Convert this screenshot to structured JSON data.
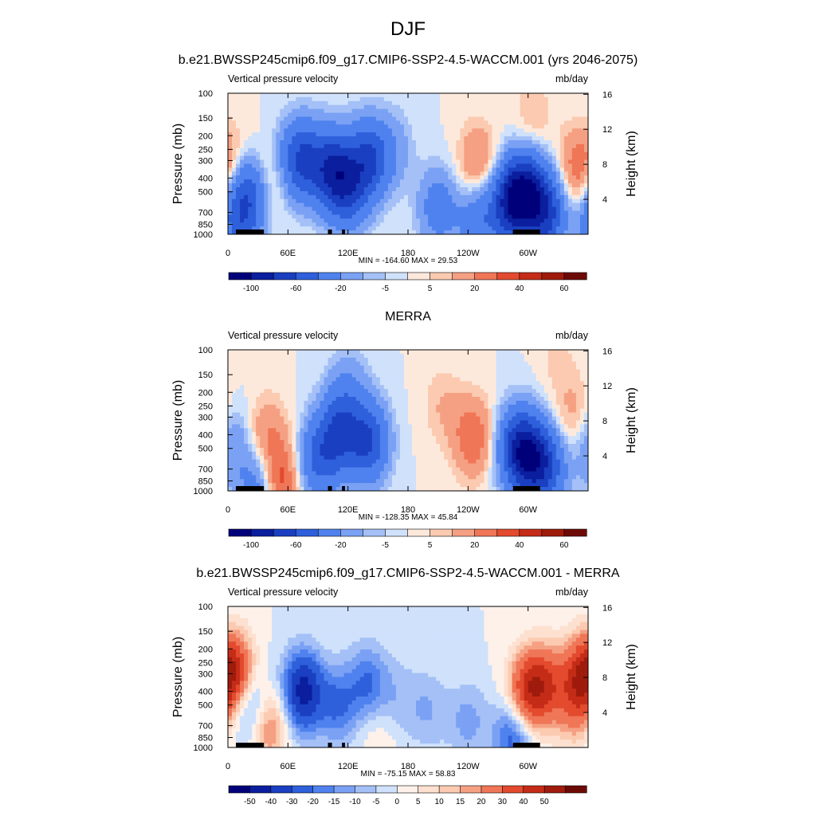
{
  "title": "DJF",
  "colors": {
    "palette_main": [
      "#00007a",
      "#0a1e9e",
      "#1a3fc0",
      "#2e60db",
      "#4f82ee",
      "#7aa1f4",
      "#a4c0f7",
      "#cfe1fb",
      "#fde9dc",
      "#fbcab0",
      "#f5a083",
      "#ef7656",
      "#e34a2e",
      "#c52c17",
      "#9f1b0c",
      "#6e0a05"
    ],
    "palette_diff": [
      "#00007a",
      "#0a1e9e",
      "#1a3fc0",
      "#2e60db",
      "#4f82ee",
      "#7aa1f4",
      "#a4c0f7",
      "#cfe1fb",
      "#fdf1ea",
      "#fde0cf",
      "#fbcab0",
      "#f5a083",
      "#ef7656",
      "#e34a2e",
      "#c52c17",
      "#9f1b0c",
      "#6e0a05"
    ],
    "terrain": "#000000"
  },
  "panels": [
    {
      "title": "b.e21.BWSSP245cmip6.f09_g17.CMIP6-SSP2-4.5-WACCM.001 (yrs 2046-2075)",
      "left_label": "Vertical pressure velocity",
      "right_label": "mb/day",
      "ylabel": "Pressure (mb)",
      "y2label": "Height (km)",
      "minmax": "MIN = -164.60  MAX =  29.53",
      "cb_labels": [
        "-100",
        "-60",
        "-20",
        "-5",
        "5",
        "20",
        "40",
        "60"
      ]
    },
    {
      "title": "MERRA",
      "left_label": "Vertical pressure velocity",
      "right_label": "mb/day",
      "ylabel": "Pressure (mb)",
      "y2label": "Height (km)",
      "minmax": "MIN = -128.35  MAX =  45.84",
      "cb_labels": [
        "-100",
        "-60",
        "-20",
        "-5",
        "5",
        "20",
        "40",
        "60"
      ]
    },
    {
      "title": "b.e21.BWSSP245cmip6.f09_g17.CMIP6-SSP2-4.5-WACCM.001 - MERRA",
      "left_label": "Vertical pressure velocity",
      "right_label": "mb/day",
      "ylabel": "Pressure (mb)",
      "y2label": "Height (km)",
      "minmax": "MIN = -75.15  MAX =  58.83",
      "cb_labels": [
        "-50",
        "-40",
        "-30",
        "-20",
        "-15",
        "-10",
        "-5",
        "0",
        "5",
        "10",
        "15",
        "20",
        "30",
        "40",
        "50"
      ]
    }
  ],
  "chart_data": [
    {
      "type": "heatmap",
      "title": "b.e21.BWSSP245cmip6.f09_g17.CMIP6-SSP2-4.5-WACCM.001 (yrs 2046-2075)",
      "xticks": [
        "0",
        "60E",
        "120E",
        "180",
        "120W",
        "60W"
      ],
      "yticks": [
        "100",
        "150",
        "200",
        "250",
        "300",
        "400",
        "500",
        "700",
        "850",
        "1000"
      ],
      "y2ticks": [
        "16",
        "12",
        "8",
        "4"
      ],
      "xlim_deg": [
        0,
        360
      ],
      "ylim_mb": [
        1000,
        100
      ],
      "levels": [
        -100,
        -80,
        -60,
        -40,
        -20,
        -10,
        -5,
        0,
        5,
        10,
        20,
        30,
        40,
        50,
        60
      ],
      "min": -164.6,
      "max": 29.53,
      "anomalies": [
        {
          "lon": 22,
          "p": 500,
          "v": -50
        },
        {
          "lon": 40,
          "p": 400,
          "v": 22
        },
        {
          "lon": 10,
          "p": 800,
          "v": -40
        },
        {
          "lon": 55,
          "p": 300,
          "v": -12
        },
        {
          "lon": 75,
          "p": 300,
          "v": -60
        },
        {
          "lon": 105,
          "p": 350,
          "v": -70
        },
        {
          "lon": 140,
          "p": 300,
          "v": -60
        },
        {
          "lon": 120,
          "p": 500,
          "v": -45
        },
        {
          "lon": 165,
          "p": 250,
          "v": -15
        },
        {
          "lon": 210,
          "p": 650,
          "v": -30
        },
        {
          "lon": 250,
          "p": 800,
          "v": -35
        },
        {
          "lon": 250,
          "p": 320,
          "v": 24
        },
        {
          "lon": 283,
          "p": 600,
          "v": -75
        },
        {
          "lon": 298,
          "p": 500,
          "v": -70
        },
        {
          "lon": 318,
          "p": 700,
          "v": -65
        },
        {
          "lon": 350,
          "p": 350,
          "v": 28
        },
        {
          "lon": 305,
          "p": 150,
          "v": 10
        },
        {
          "lon": 8,
          "p": 300,
          "v": 8
        }
      ]
    },
    {
      "type": "heatmap",
      "title": "MERRA",
      "xticks": [
        "0",
        "60E",
        "120E",
        "180",
        "120W",
        "60W"
      ],
      "yticks": [
        "100",
        "150",
        "200",
        "250",
        "300",
        "400",
        "500",
        "700",
        "850",
        "1000"
      ],
      "y2ticks": [
        "16",
        "12",
        "8",
        "4"
      ],
      "xlim_deg": [
        0,
        360
      ],
      "ylim_mb": [
        1000,
        100
      ],
      "levels": [
        -100,
        -80,
        -60,
        -40,
        -20,
        -10,
        -5,
        0,
        5,
        10,
        20,
        30,
        40,
        50,
        60
      ],
      "min": -128.35,
      "max": 45.84,
      "anomalies": [
        {
          "lon": 8,
          "p": 500,
          "v": -30
        },
        {
          "lon": 20,
          "p": 600,
          "v": 22
        },
        {
          "lon": 40,
          "p": 400,
          "v": 18
        },
        {
          "lon": 50,
          "p": 850,
          "v": 40
        },
        {
          "lon": 30,
          "p": 850,
          "v": -45
        },
        {
          "lon": 110,
          "p": 400,
          "v": -55
        },
        {
          "lon": 140,
          "p": 450,
          "v": -60
        },
        {
          "lon": 90,
          "p": 600,
          "v": -40
        },
        {
          "lon": 120,
          "p": 200,
          "v": -20
        },
        {
          "lon": 245,
          "p": 420,
          "v": 30
        },
        {
          "lon": 215,
          "p": 250,
          "v": 10
        },
        {
          "lon": 290,
          "p": 500,
          "v": -70
        },
        {
          "lon": 305,
          "p": 600,
          "v": -55
        },
        {
          "lon": 320,
          "p": 700,
          "v": -40
        },
        {
          "lon": 345,
          "p": 300,
          "v": 14
        },
        {
          "lon": 330,
          "p": 120,
          "v": 6
        }
      ]
    },
    {
      "type": "heatmap",
      "title": "b.e21.BWSSP245cmip6.f09_g17.CMIP6-SSP2-4.5-WACCM.001 - MERRA",
      "xticks": [
        "0",
        "60E",
        "120E",
        "180",
        "120W",
        "60W"
      ],
      "yticks": [
        "100",
        "150",
        "200",
        "250",
        "300",
        "400",
        "500",
        "700",
        "850",
        "1000"
      ],
      "y2ticks": [
        "16",
        "12",
        "8",
        "4"
      ],
      "xlim_deg": [
        0,
        360
      ],
      "ylim_mb": [
        1000,
        100
      ],
      "levels": [
        -50,
        -40,
        -30,
        -20,
        -15,
        -10,
        -5,
        0,
        5,
        10,
        15,
        20,
        30,
        40,
        50
      ],
      "min": -75.15,
      "max": 58.83,
      "anomalies": [
        {
          "lon": 8,
          "p": 300,
          "v": 35
        },
        {
          "lon": 22,
          "p": 500,
          "v": -25
        },
        {
          "lon": 40,
          "p": 700,
          "v": 25
        },
        {
          "lon": 75,
          "p": 400,
          "v": -45
        },
        {
          "lon": 110,
          "p": 500,
          "v": -20
        },
        {
          "lon": 140,
          "p": 350,
          "v": -20
        },
        {
          "lon": 170,
          "p": 450,
          "v": -8
        },
        {
          "lon": 200,
          "p": 550,
          "v": -10
        },
        {
          "lon": 240,
          "p": 650,
          "v": -12
        },
        {
          "lon": 300,
          "p": 400,
          "v": 40
        },
        {
          "lon": 318,
          "p": 350,
          "v": 28
        },
        {
          "lon": 345,
          "p": 500,
          "v": 20
        },
        {
          "lon": 355,
          "p": 300,
          "v": 30
        },
        {
          "lon": 150,
          "p": 850,
          "v": 6
        },
        {
          "lon": 285,
          "p": 850,
          "v": -25
        }
      ]
    }
  ]
}
